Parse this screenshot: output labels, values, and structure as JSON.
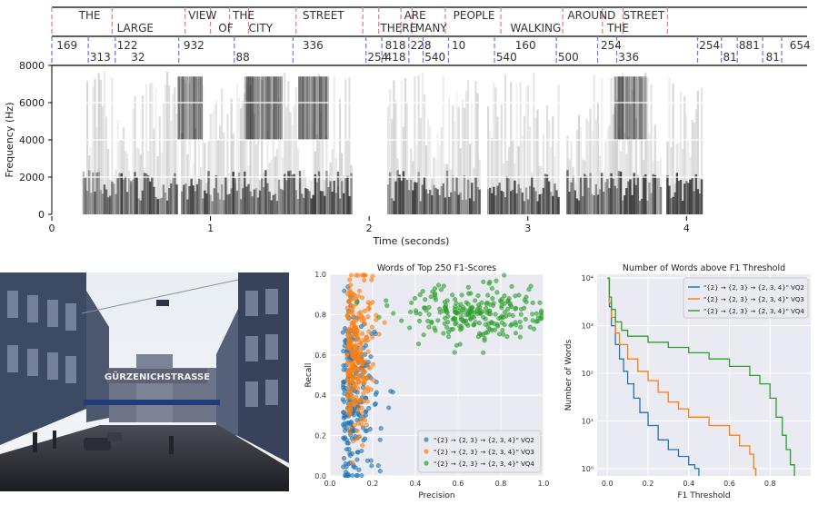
{
  "spectrogram": {
    "ylabel": "Frequency (Hz)",
    "xlabel": "Time (seconds)",
    "yticks": [
      0,
      2000,
      4000,
      6000,
      8000
    ],
    "xticks": [
      0,
      1,
      2,
      3,
      4
    ],
    "xlim": [
      0,
      4.76
    ],
    "ylim": [
      0,
      8000
    ],
    "words": [
      {
        "text": "THE",
        "t": 0.17
      },
      {
        "text": "LARGE",
        "t": 0.41
      },
      {
        "text": "VIEW",
        "t": 0.86
      },
      {
        "text": "OF",
        "t": 1.05
      },
      {
        "text": "THE",
        "t": 1.14
      },
      {
        "text": "CITY",
        "t": 1.24
      },
      {
        "text": "STREET",
        "t": 1.58
      },
      {
        "text": "THERE",
        "t": 2.07
      },
      {
        "text": "ARE",
        "t": 2.22
      },
      {
        "text": "MANY",
        "t": 2.29
      },
      {
        "text": "PEOPLE",
        "t": 2.53
      },
      {
        "text": "WALKING",
        "t": 2.89
      },
      {
        "text": "AROUND",
        "t": 3.25
      },
      {
        "text": "THE",
        "t": 3.5
      },
      {
        "text": "STREET",
        "t": 3.6
      }
    ],
    "word_boundaries": [
      0.0,
      0.38,
      0.84,
      1.0,
      1.12,
      1.24,
      1.54,
      1.96,
      2.06,
      2.2,
      2.27,
      2.48,
      2.83,
      3.22,
      3.47,
      3.6,
      3.88
    ],
    "codes": [
      {
        "text": "169",
        "t": 0.03,
        "row": 1
      },
      {
        "text": "313",
        "t": 0.24,
        "row": 2
      },
      {
        "text": "122",
        "t": 0.41,
        "row": 1
      },
      {
        "text": "32",
        "t": 0.5,
        "row": 2
      },
      {
        "text": "932",
        "t": 0.83,
        "row": 1
      },
      {
        "text": "88",
        "t": 1.16,
        "row": 2
      },
      {
        "text": "336",
        "t": 1.58,
        "row": 1
      },
      {
        "text": "254",
        "t": 1.99,
        "row": 2
      },
      {
        "text": "818",
        "t": 2.1,
        "row": 1
      },
      {
        "text": "418",
        "t": 2.1,
        "row": 2
      },
      {
        "text": "228",
        "t": 2.26,
        "row": 1
      },
      {
        "text": "540",
        "t": 2.35,
        "row": 2
      },
      {
        "text": "10",
        "t": 2.52,
        "row": 1
      },
      {
        "text": "540",
        "t": 2.8,
        "row": 2
      },
      {
        "text": "160",
        "t": 2.92,
        "row": 1
      },
      {
        "text": "500",
        "t": 3.19,
        "row": 2
      },
      {
        "text": "254",
        "t": 3.46,
        "row": 1
      },
      {
        "text": "336",
        "t": 3.57,
        "row": 2
      },
      {
        "text": "254",
        "t": 4.08,
        "row": 1
      },
      {
        "text": "881",
        "t": 4.33,
        "row": 1
      },
      {
        "text": "81",
        "t": 4.23,
        "row": 2
      },
      {
        "text": "81",
        "t": 4.5,
        "row": 2
      },
      {
        "text": "654",
        "t": 4.65,
        "row": 1
      }
    ],
    "code_boundaries": [
      0.0,
      0.23,
      0.4,
      0.8,
      1.15,
      1.52,
      1.98,
      2.08,
      2.25,
      2.34,
      2.5,
      2.79,
      3.18,
      3.44,
      3.56,
      4.07,
      4.22,
      4.32,
      4.48,
      4.6
    ]
  },
  "photo": {
    "sign_text": "GÜRZENICHSTRASSE"
  },
  "chart_data": [
    {
      "type": "scatter",
      "title": "Words of Top 250 F1-Scores",
      "xlabel": "Precision",
      "ylabel": "Recall",
      "xlim": [
        0,
        1
      ],
      "ylim": [
        0,
        1
      ],
      "xticks": [
        0.0,
        0.2,
        0.4,
        0.6,
        0.8,
        1.0
      ],
      "yticks": [
        0.0,
        0.2,
        0.4,
        0.6,
        0.8,
        1.0
      ],
      "legend_position": "lower-right",
      "series": [
        {
          "name": "\"{2} → {2, 3} → {2, 3, 4}\" VQ2",
          "color": "#1f77b4",
          "count": 250,
          "center": [
            0.06,
            0.38
          ],
          "spread": [
            0.07,
            0.22
          ]
        },
        {
          "name": "\"{2} → {2, 3} → {2, 3, 4}\" VQ3",
          "color": "#ff7f0e",
          "count": 250,
          "center": [
            0.08,
            0.6
          ],
          "spread": [
            0.06,
            0.2
          ]
        },
        {
          "name": "\"{2} → {2, 3} → {2, 3, 4}\" VQ4",
          "color": "#2ca02c",
          "count": 250,
          "center": [
            0.65,
            0.8
          ],
          "spread": [
            0.16,
            0.07
          ]
        }
      ]
    },
    {
      "type": "line",
      "title": "Number of Words above F1 Threshold",
      "xlabel": "F1 Threshold",
      "ylabel": "Number of Words",
      "yscale": "log",
      "xlim": [
        -0.05,
        1.0
      ],
      "ylim": [
        0.7,
        12000
      ],
      "xticks": [
        0.0,
        0.2,
        0.4,
        0.6,
        0.8
      ],
      "yticks": [
        1,
        10,
        100,
        1000,
        10000
      ],
      "ytick_labels": [
        "10⁰",
        "10¹",
        "10²",
        "10³",
        "10⁴"
      ],
      "legend_position": "top-right",
      "series": [
        {
          "name": "\"{2} → {2, 3} → {2, 3, 4}\" VQ2",
          "color": "#1f77b4",
          "x": [
            0,
            0.01,
            0.02,
            0.04,
            0.06,
            0.08,
            0.1,
            0.13,
            0.16,
            0.2,
            0.25,
            0.3,
            0.35,
            0.4,
            0.43,
            0.45
          ],
          "y": [
            10000,
            2500,
            1000,
            400,
            200,
            110,
            60,
            30,
            15,
            8,
            4,
            2.5,
            1.8,
            1.2,
            1,
            0.7
          ]
        },
        {
          "name": "\"{2} → {2, 3} → {2, 3, 4}\" VQ3",
          "color": "#ff7f0e",
          "x": [
            0,
            0.01,
            0.02,
            0.04,
            0.06,
            0.1,
            0.15,
            0.2,
            0.25,
            0.3,
            0.35,
            0.4,
            0.5,
            0.6,
            0.65,
            0.7,
            0.72,
            0.73
          ],
          "y": [
            10000,
            3000,
            1500,
            700,
            400,
            200,
            110,
            70,
            40,
            25,
            18,
            12,
            8,
            5,
            3,
            2,
            1,
            0.7
          ]
        },
        {
          "name": "\"{2} → {2, 3} → {2, 3, 4}\" VQ4",
          "color": "#2ca02c",
          "x": [
            0,
            0.01,
            0.02,
            0.04,
            0.07,
            0.1,
            0.2,
            0.3,
            0.4,
            0.5,
            0.6,
            0.7,
            0.75,
            0.8,
            0.83,
            0.86,
            0.88,
            0.9,
            0.92
          ],
          "y": [
            10000,
            4000,
            2200,
            1200,
            800,
            600,
            450,
            350,
            270,
            200,
            140,
            90,
            60,
            30,
            12,
            5,
            2.5,
            1.2,
            0.7
          ]
        }
      ]
    }
  ]
}
